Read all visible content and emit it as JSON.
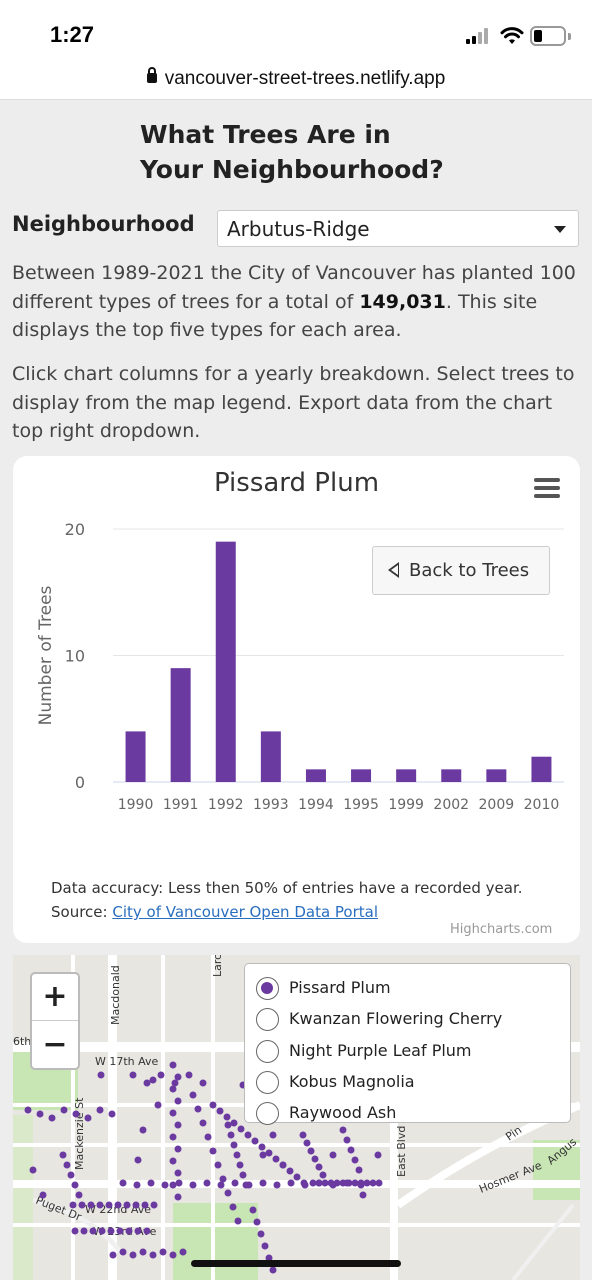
{
  "status_bar": {
    "time": "1:27"
  },
  "browser": {
    "url": "vancouver-street-trees.netlify.app"
  },
  "page": {
    "title_line1": "What Trees Are in",
    "title_line2": "Your Neighbourhood?",
    "neighbourhood_label": "Neighbourhood",
    "neighbourhood_selected": "Arbutus-Ridge",
    "intro_before": "Between 1989-2021 the City of Vancouver has planted 100 different types of trees for a total of ",
    "intro_total": "149,031",
    "intro_after": ". This site displays the top five types for each area.",
    "instructions": "Click chart columns for a yearly breakdown. Select trees to display from the map legend. Export data from the chart top right dropdown."
  },
  "chart_card": {
    "back_button_label": "Back to Trees",
    "footnote_line1": "Data accuracy: Less then 50% of entries have a recorded year.",
    "footnote_source_prefix": "Source: ",
    "footnote_source_link": "City of Vancouver Open Data Portal",
    "credits": "Highcharts.com"
  },
  "chart_data": {
    "type": "bar",
    "title": "Pissard Plum",
    "ylabel": "Number of Trees",
    "xlabel": "",
    "categories": [
      "1990",
      "1991",
      "1992",
      "1993",
      "1994",
      "1995",
      "1999",
      "2002",
      "2009",
      "2010"
    ],
    "values": [
      4,
      9,
      19,
      4,
      1,
      1,
      1,
      1,
      1,
      2
    ],
    "yticks": [
      0,
      10,
      20
    ],
    "ylim": [
      0,
      20
    ],
    "grid": true,
    "color": "#6b3aa0"
  },
  "map": {
    "zoom_in_label": "+",
    "zoom_out_label": "−",
    "legend": [
      {
        "label": "Pissard Plum",
        "checked": true
      },
      {
        "label": "Kwanzan Flowering Cherry",
        "checked": false
      },
      {
        "label": "Night Purple Leaf Plum",
        "checked": false
      },
      {
        "label": "Kobus Magnolia",
        "checked": false
      },
      {
        "label": "Raywood Ash",
        "checked": false
      }
    ],
    "street_labels": {
      "w17": "W 17th Ave",
      "sixth": "6th",
      "macdonald": "Macdonald",
      "mackenzie": "Mackenzie St",
      "east_blvd": "East Blvd",
      "hosmer": "Hosmer Ave",
      "puget": "Puget Dr",
      "w22": "W 22nd Ave",
      "w23": "W 23rd Ave",
      "angus": "Angus",
      "larch": "Larch",
      "pine": "Pin"
    },
    "dot_color": "#6b3aa0"
  }
}
